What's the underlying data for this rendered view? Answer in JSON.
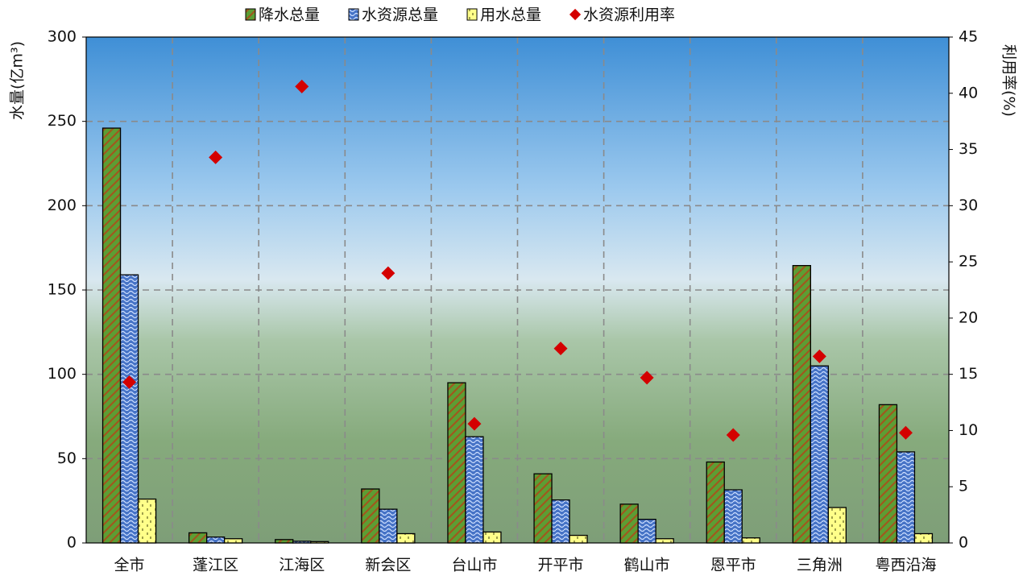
{
  "chart_data": {
    "type": "bar",
    "categories": [
      "全市",
      "蓬江区",
      "江海区",
      "新会区",
      "台山市",
      "开平市",
      "鹤山市",
      "恩平市",
      "三角洲",
      "粤西沿海"
    ],
    "series": [
      {
        "name": "降水总量",
        "color": "#5c9e34",
        "values": [
          246,
          6,
          2,
          32,
          95,
          41,
          23,
          48,
          164.5,
          82
        ]
      },
      {
        "name": "水资源总量",
        "color": "#4673c6",
        "values": [
          159,
          3.5,
          1,
          20,
          63,
          25.5,
          14,
          31.5,
          105,
          54
        ]
      },
      {
        "name": "用水总量",
        "color": "#ffff8a",
        "values": [
          26,
          2.5,
          0.8,
          5.5,
          6.5,
          4.5,
          2.5,
          3,
          21,
          5.5
        ]
      },
      {
        "name": "水资源利用率",
        "color": "#d40000",
        "type": "scatter",
        "axis": "y2",
        "values": [
          14.3,
          34.3,
          40.6,
          24.0,
          10.6,
          17.3,
          14.7,
          9.6,
          16.6,
          9.8
        ]
      }
    ],
    "y_label": "水量(亿m³)",
    "y2_label": "利用率(%)",
    "ylim": [
      0,
      300
    ],
    "yticks": [
      0,
      50,
      100,
      150,
      200,
      250,
      300
    ],
    "y2lim": [
      0,
      45
    ],
    "y2ticks": [
      0,
      5,
      10,
      15,
      20,
      25,
      30,
      35,
      40,
      45
    ],
    "grid": true,
    "legend": "top"
  }
}
